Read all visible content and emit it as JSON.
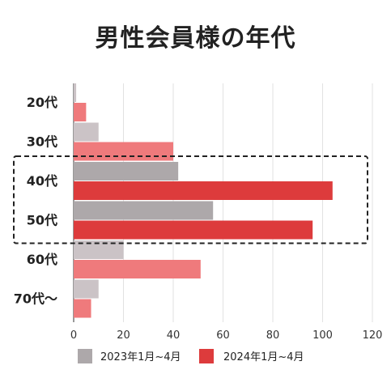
{
  "title": "男性会員様の年代",
  "chart_data": {
    "type": "bar",
    "orientation": "horizontal",
    "title": "男性会員様の年代",
    "categories": [
      "20代",
      "30代",
      "40代",
      "50代",
      "60代",
      "70代〜"
    ],
    "series": [
      {
        "name": "2023年1月~4月",
        "values": [
          1,
          10,
          42,
          56,
          20,
          10
        ]
      },
      {
        "name": "2024年1月~4月",
        "values": [
          5,
          40,
          104,
          96,
          51,
          7
        ]
      }
    ],
    "xlim": [
      0,
      120
    ],
    "xticks": [
      0,
      20,
      40,
      60,
      80,
      100,
      120
    ],
    "grid": true,
    "legend_position": "bottom",
    "highlight": {
      "categories": [
        "40代",
        "50代"
      ],
      "style": "dashed-box"
    },
    "colors": {
      "2023_default": "#cbc3c6",
      "2023_highlight": "#ada8aa",
      "2024_default": "#ef7a7c",
      "2024_highlight": "#dd3b3c",
      "grid": "#e2e2e2",
      "axis": "#555555"
    }
  }
}
